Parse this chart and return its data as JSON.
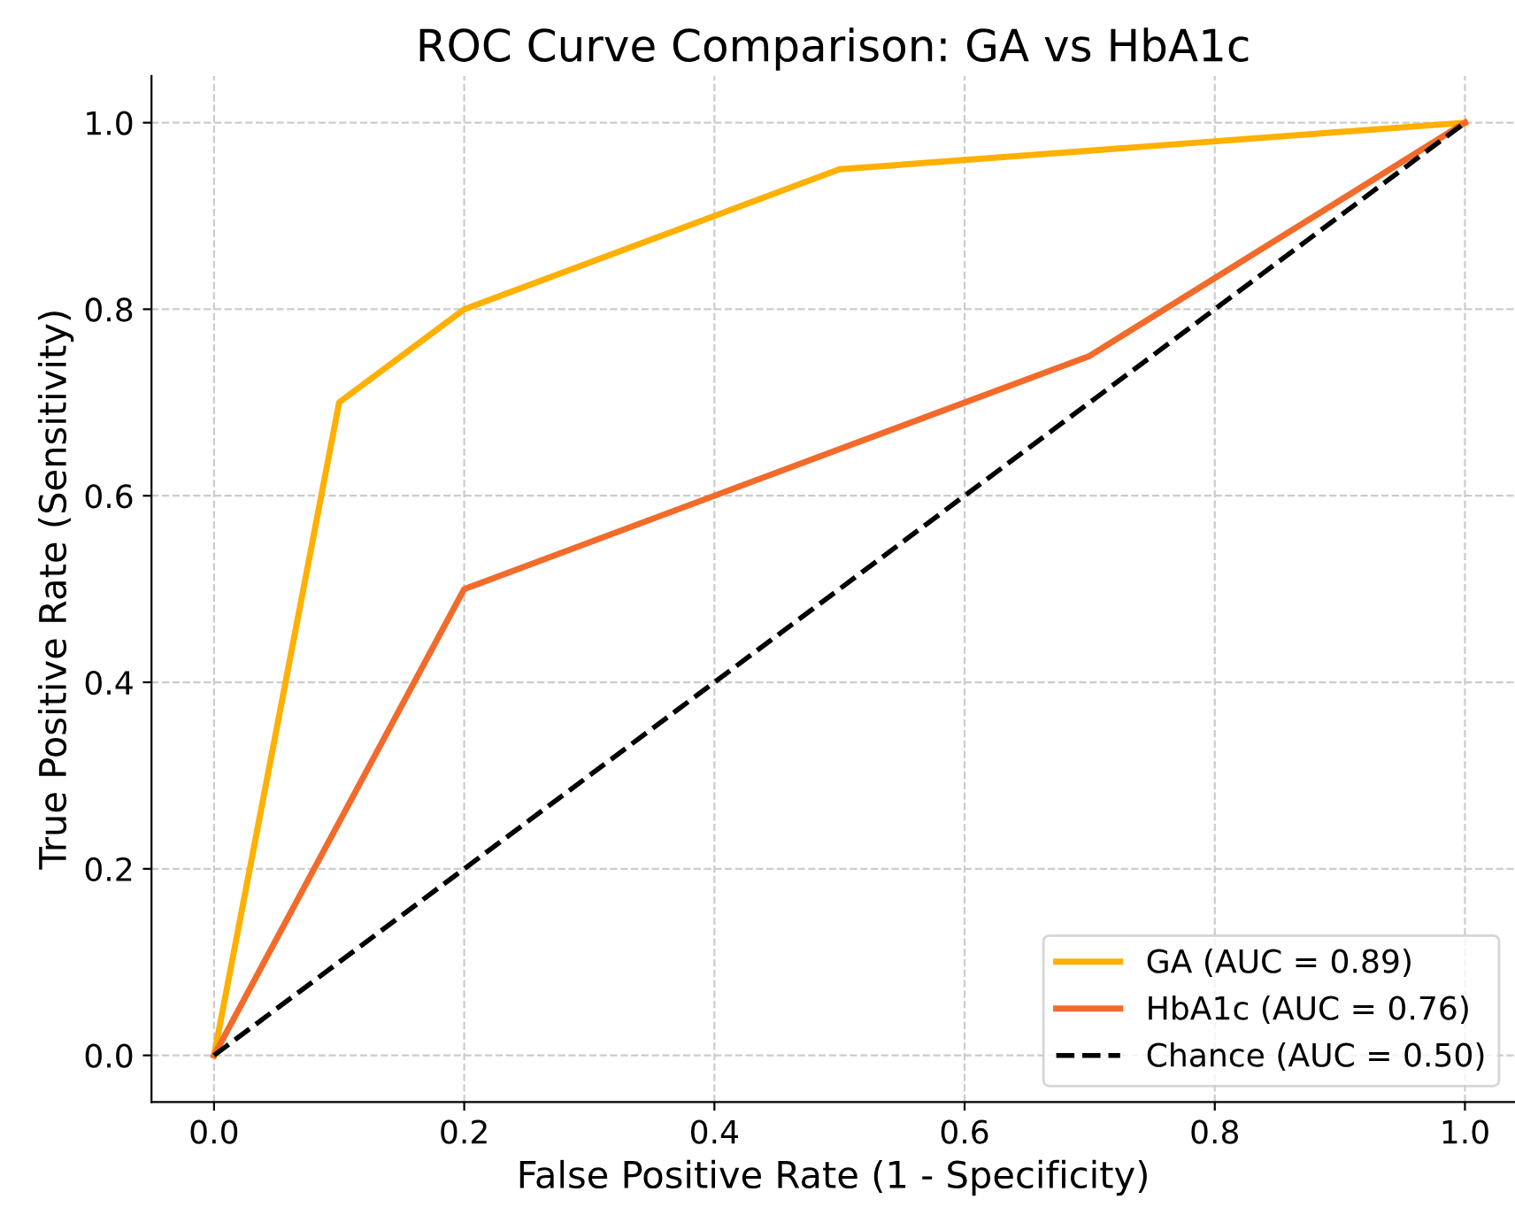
{
  "chart_data": {
    "type": "line",
    "title": "ROC Curve Comparison: GA vs HbA1c",
    "xlabel": "False Positive Rate (1 - Specificity)",
    "ylabel": "True Positive Rate (Sensitivity)",
    "series": [
      {
        "name": "GA (AUC = 0.89)",
        "color": "#ffb000",
        "x": [
          0,
          0.1,
          0.2,
          0.5,
          1
        ],
        "values": [
          0,
          0.7,
          0.8,
          0.95,
          1
        ]
      },
      {
        "name": "HbA1c (AUC = 0.76)",
        "color": "#f26b2a",
        "x": [
          0,
          0.2,
          0.7,
          1
        ],
        "values": [
          0,
          0.5,
          0.75,
          1
        ]
      },
      {
        "name": "Chance (AUC = 0.50)",
        "color": "#000000",
        "x": [
          0,
          1
        ],
        "values": [
          0,
          1
        ],
        "line_style": "dashed"
      }
    ],
    "xlim": [
      -0.05,
      1.04
    ],
    "ylim": [
      -0.05,
      1.05
    ],
    "xticks": [
      {
        "value": 0,
        "label": "0.0"
      },
      {
        "value": 0.2,
        "label": "0.2"
      },
      {
        "value": 0.4,
        "label": "0.4"
      },
      {
        "value": 0.6,
        "label": "0.6"
      },
      {
        "value": 0.8,
        "label": "0.8"
      },
      {
        "value": 1,
        "label": "1.0"
      }
    ],
    "yticks": [
      {
        "value": 0,
        "label": "0.0"
      },
      {
        "value": 0.2,
        "label": "0.2"
      },
      {
        "value": 0.4,
        "label": "0.4"
      },
      {
        "value": 0.6,
        "label": "0.6"
      },
      {
        "value": 0.8,
        "label": "0.8"
      },
      {
        "value": 1,
        "label": "1.0"
      }
    ],
    "grid": true,
    "legend": "bottom right",
    "marker": "none"
  }
}
